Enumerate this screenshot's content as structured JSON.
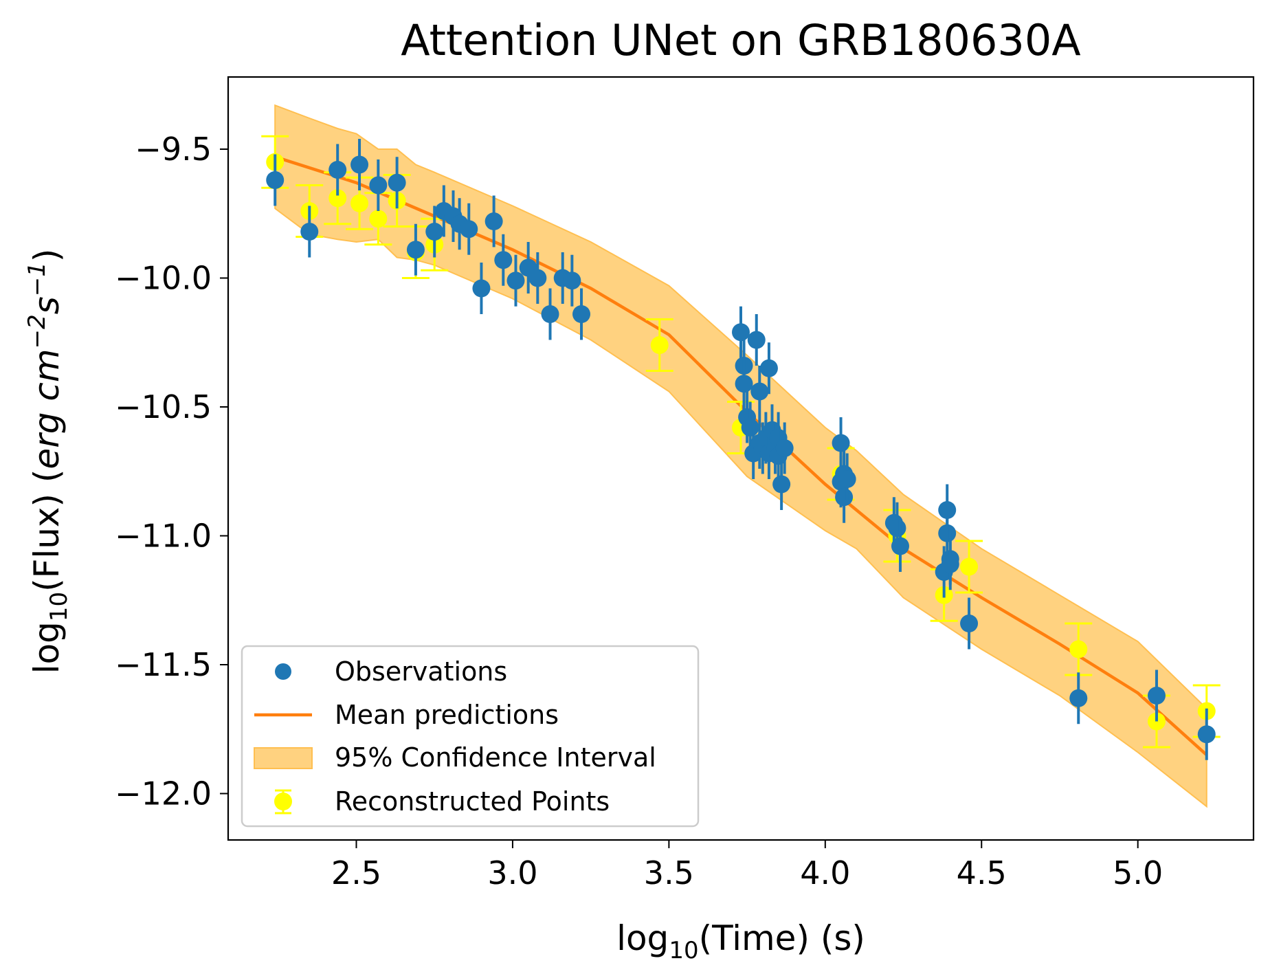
{
  "chart_data": {
    "type": "scatter",
    "title": "Attention UNet on GRB180630A",
    "xlabel": "log10(Time) (s)",
    "ylabel": "log10(Flux) (erg cm^-2 s^-1)",
    "xlim": [
      2.09,
      5.37
    ],
    "ylim": [
      -12.18,
      -9.22
    ],
    "xticks": [
      "2.5",
      "3.0",
      "3.5",
      "4.0",
      "4.5",
      "5.0"
    ],
    "yticks": [
      "−9.5",
      "−10.0",
      "−10.5",
      "−11.0",
      "−11.5",
      "−12.0"
    ],
    "legend_position": "lower-left",
    "colors": {
      "observations": "#1f77b4",
      "mean": "#ff7f0e",
      "band_fill": "#ffd280",
      "band_edge": "#ffbf50",
      "reconstructed": "#ffff00"
    },
    "series": [
      {
        "name": "Observations",
        "type": "scatter",
        "err": 0.1,
        "x": [
          2.24,
          2.35,
          2.44,
          2.51,
          2.57,
          2.63,
          2.69,
          2.75,
          2.78,
          2.81,
          2.83,
          2.86,
          2.9,
          2.94,
          2.97,
          3.01,
          3.05,
          3.08,
          3.12,
          3.16,
          3.19,
          3.22,
          3.73,
          3.74,
          3.74,
          3.75,
          3.76,
          3.77,
          3.78,
          3.79,
          3.79,
          3.8,
          3.81,
          3.82,
          3.82,
          3.83,
          3.84,
          3.85,
          3.85,
          3.86,
          3.87,
          4.05,
          4.05,
          4.06,
          4.06,
          4.07,
          4.22,
          4.23,
          4.24,
          4.38,
          4.39,
          4.39,
          4.4,
          4.4,
          4.46,
          4.81,
          5.06,
          5.22
        ],
        "y": [
          -9.62,
          -9.82,
          -9.58,
          -9.56,
          -9.64,
          -9.63,
          -9.89,
          -9.82,
          -9.74,
          -9.76,
          -9.79,
          -9.81,
          -10.04,
          -9.78,
          -9.93,
          -10.01,
          -9.96,
          -10.0,
          -10.14,
          -10.0,
          -10.01,
          -10.14,
          -10.21,
          -10.34,
          -10.41,
          -10.54,
          -10.58,
          -10.68,
          -10.24,
          -10.44,
          -10.64,
          -10.66,
          -10.62,
          -10.35,
          -10.68,
          -10.59,
          -10.66,
          -10.62,
          -10.69,
          -10.8,
          -10.66,
          -10.64,
          -10.79,
          -10.85,
          -10.76,
          -10.78,
          -10.95,
          -10.97,
          -11.04,
          -11.14,
          -10.99,
          -10.9,
          -11.09,
          -11.11,
          -11.34,
          -11.63,
          -11.62,
          -11.77
        ]
      },
      {
        "name": "Reconstructed Points",
        "type": "errorbar",
        "err": 0.1,
        "x": [
          2.24,
          2.35,
          2.44,
          2.51,
          2.57,
          2.63,
          2.69,
          2.75,
          3.47,
          3.73,
          4.05,
          4.23,
          4.38,
          4.46,
          4.81,
          5.06,
          5.22
        ],
        "y": [
          -9.55,
          -9.74,
          -9.69,
          -9.71,
          -9.77,
          -9.7,
          -9.9,
          -9.87,
          -10.26,
          -10.58,
          -10.76,
          -11.0,
          -11.23,
          -11.12,
          -11.44,
          -11.72,
          -11.68
        ]
      },
      {
        "name": "Mean predictions",
        "type": "line",
        "x": [
          2.24,
          2.5,
          2.75,
          3.0,
          3.25,
          3.5,
          3.75,
          4.0,
          4.25,
          4.5,
          4.75,
          5.0,
          5.22
        ],
        "y": [
          -9.53,
          -9.63,
          -9.76,
          -9.89,
          -10.04,
          -10.22,
          -10.52,
          -10.8,
          -11.05,
          -11.24,
          -11.42,
          -11.61,
          -11.85
        ]
      },
      {
        "name": "95% Confidence Interval",
        "type": "band",
        "x": [
          2.24,
          2.35,
          2.44,
          2.5,
          2.57,
          2.63,
          2.69,
          2.75,
          3.0,
          3.25,
          3.5,
          3.75,
          4.0,
          4.1,
          4.25,
          4.5,
          4.75,
          5.0,
          5.22
        ],
        "upper": [
          -9.33,
          -9.38,
          -9.42,
          -9.44,
          -9.5,
          -9.5,
          -9.56,
          -9.59,
          -9.72,
          -9.86,
          -10.03,
          -10.3,
          -10.58,
          -10.67,
          -10.84,
          -11.05,
          -11.23,
          -11.41,
          -11.67
        ],
        "lower": [
          -9.73,
          -9.83,
          -9.85,
          -9.86,
          -9.85,
          -9.92,
          -9.93,
          -9.95,
          -10.08,
          -10.24,
          -10.44,
          -10.77,
          -10.98,
          -11.05,
          -11.24,
          -11.44,
          -11.62,
          -11.84,
          -12.05
        ]
      }
    ],
    "legend": [
      {
        "label": "Observations",
        "kind": "observations"
      },
      {
        "label": "Mean predictions",
        "kind": "mean"
      },
      {
        "label": "95% Confidence Interval",
        "kind": "band"
      },
      {
        "label": "Reconstructed Points",
        "kind": "reconstructed"
      }
    ]
  }
}
